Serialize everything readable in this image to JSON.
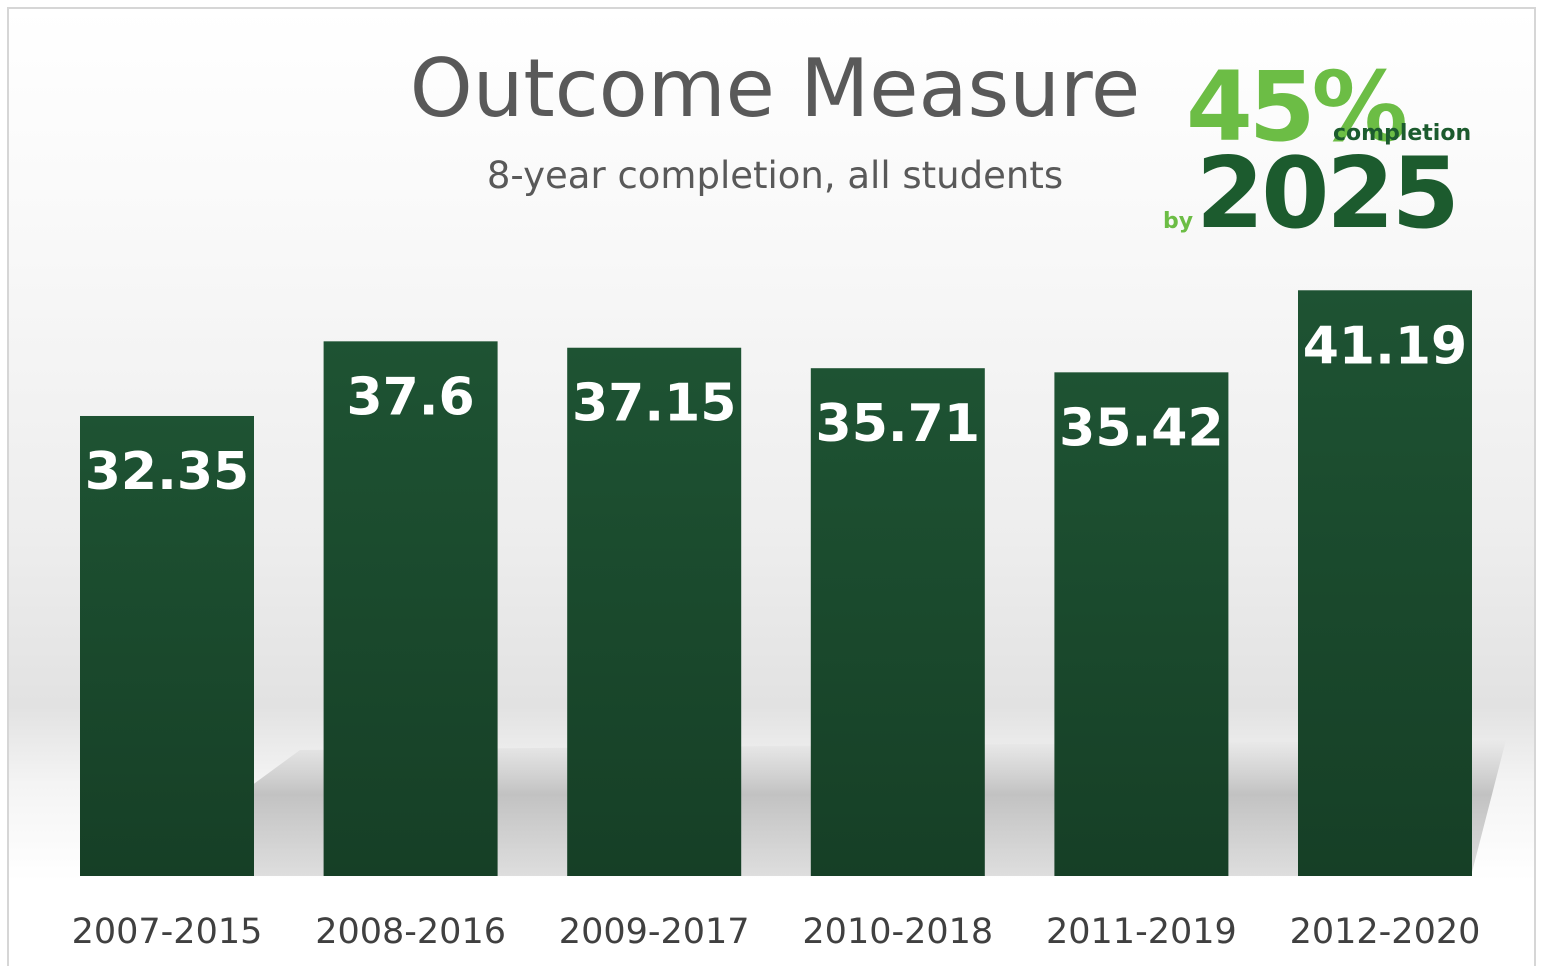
{
  "chart_data": {
    "type": "bar",
    "title": "Outcome Measure",
    "subtitle": "8-year completion, all students",
    "logo": {
      "number": "45%",
      "word": "completion",
      "by": "by",
      "year": "2025"
    },
    "categories": [
      "2007-2015",
      "2008-2016",
      "2009-2017",
      "2010-2018",
      "2011-2019",
      "2012-2020"
    ],
    "values": [
      32.35,
      37.6,
      37.15,
      35.71,
      35.42,
      41.19
    ],
    "color": "#1c4f30"
  }
}
